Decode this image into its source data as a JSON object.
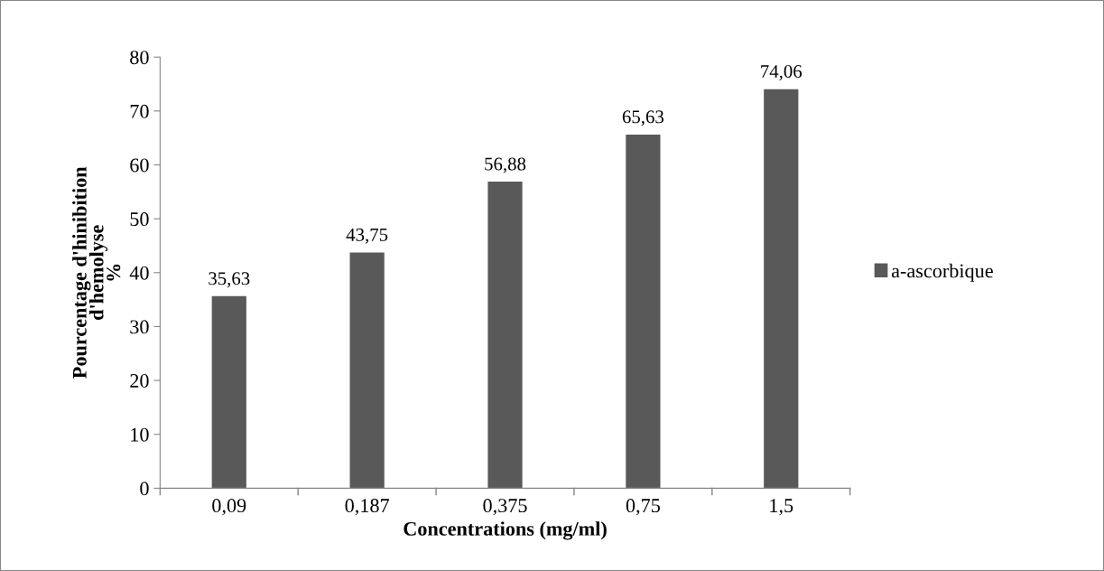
{
  "chart_data": {
    "type": "bar",
    "xlabel": "Concentrations (mg/ml)",
    "ylabel": "Pourcentage d'hinibition\nd'hemolyse\n%",
    "categories": [
      "0,09",
      "0,187",
      "0,375",
      "0,75",
      "1,5"
    ],
    "series": [
      {
        "name": "a-ascorbique",
        "color": "#595959",
        "values": [
          35.63,
          43.75,
          56.88,
          65.63,
          74.06
        ],
        "value_labels": [
          "35,63",
          "43,75",
          "56,88",
          "65,63",
          "74,06"
        ]
      }
    ],
    "ylim": [
      0,
      80
    ],
    "yticks": [
      0,
      10,
      20,
      30,
      40,
      50,
      60,
      70,
      80
    ],
    "grid": false,
    "legend": "right"
  }
}
